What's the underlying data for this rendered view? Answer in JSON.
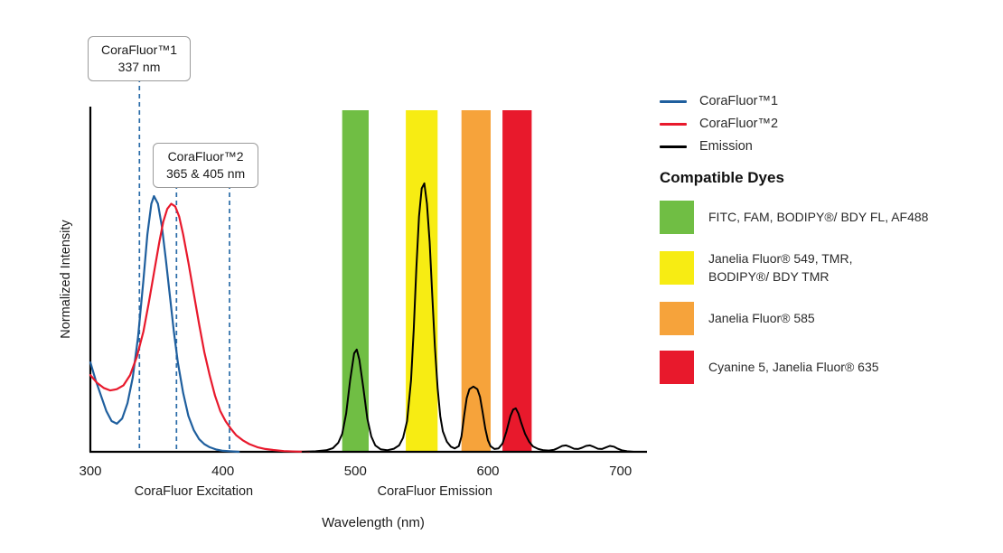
{
  "chart_data": {
    "type": "line",
    "title": "",
    "xlabel": "Wavelength (nm)",
    "ylabel": "Normalized Intensity",
    "xlim": [
      300,
      720
    ],
    "ylim": [
      0,
      1.35
    ],
    "xticks": [
      300,
      400,
      500,
      600,
      700
    ],
    "grid": false,
    "legend_position": "right",
    "marker_color": "#2B6CA8",
    "region_labels": [
      {
        "text": "CoraFluor Excitation",
        "center_nm": 378
      },
      {
        "text": "CoraFluor Emission",
        "center_nm": 560
      }
    ],
    "bands": [
      {
        "name": "filter-band-green",
        "from": 490,
        "to": 510,
        "color": "#70BE44"
      },
      {
        "name": "filter-band-yellow",
        "from": 538,
        "to": 562,
        "color": "#F7EC13"
      },
      {
        "name": "filter-band-orange",
        "from": 580,
        "to": 602,
        "color": "#F6A33B"
      },
      {
        "name": "filter-band-red",
        "from": 611,
        "to": 633,
        "color": "#E8192C"
      }
    ],
    "markers": [
      {
        "nm": 337,
        "from_annotation": 0
      },
      {
        "nm": 365,
        "from_annotation": 1
      },
      {
        "nm": 405,
        "from_annotation": 1
      }
    ],
    "series": [
      {
        "name": "CoraFluor™1",
        "color": "#1F5F9E",
        "width": 2.2,
        "points": [
          [
            300,
            0.35
          ],
          [
            304,
            0.28
          ],
          [
            308,
            0.22
          ],
          [
            312,
            0.16
          ],
          [
            316,
            0.12
          ],
          [
            320,
            0.11
          ],
          [
            324,
            0.13
          ],
          [
            328,
            0.19
          ],
          [
            332,
            0.29
          ],
          [
            336,
            0.45
          ],
          [
            340,
            0.67
          ],
          [
            343,
            0.85
          ],
          [
            346,
            0.97
          ],
          [
            348,
            1.0
          ],
          [
            351,
            0.97
          ],
          [
            354,
            0.88
          ],
          [
            357,
            0.75
          ],
          [
            360,
            0.61
          ],
          [
            363,
            0.47
          ],
          [
            366,
            0.35
          ],
          [
            370,
            0.23
          ],
          [
            374,
            0.14
          ],
          [
            378,
            0.085
          ],
          [
            382,
            0.05
          ],
          [
            386,
            0.03
          ],
          [
            390,
            0.018
          ],
          [
            395,
            0.009
          ],
          [
            400,
            0.004
          ],
          [
            405,
            0.002
          ],
          [
            412,
            0
          ]
        ]
      },
      {
        "name": "CoraFluor™2",
        "color": "#E8192C",
        "width": 2.2,
        "points": [
          [
            300,
            0.3
          ],
          [
            305,
            0.27
          ],
          [
            310,
            0.25
          ],
          [
            315,
            0.24
          ],
          [
            320,
            0.245
          ],
          [
            325,
            0.26
          ],
          [
            330,
            0.3
          ],
          [
            335,
            0.37
          ],
          [
            340,
            0.47
          ],
          [
            344,
            0.58
          ],
          [
            348,
            0.7
          ],
          [
            352,
            0.82
          ],
          [
            355,
            0.9
          ],
          [
            358,
            0.95
          ],
          [
            361,
            0.97
          ],
          [
            364,
            0.96
          ],
          [
            367,
            0.92
          ],
          [
            370,
            0.85
          ],
          [
            374,
            0.74
          ],
          [
            378,
            0.62
          ],
          [
            382,
            0.5
          ],
          [
            386,
            0.39
          ],
          [
            390,
            0.3
          ],
          [
            394,
            0.22
          ],
          [
            398,
            0.16
          ],
          [
            402,
            0.12
          ],
          [
            406,
            0.09
          ],
          [
            410,
            0.065
          ],
          [
            415,
            0.045
          ],
          [
            420,
            0.03
          ],
          [
            426,
            0.018
          ],
          [
            432,
            0.011
          ],
          [
            438,
            0.007
          ],
          [
            446,
            0.003
          ],
          [
            455,
            0.001
          ],
          [
            465,
            0
          ]
        ]
      },
      {
        "name": "Emission",
        "color": "#000000",
        "width": 2,
        "points": [
          [
            460,
            0
          ],
          [
            470,
            0.002
          ],
          [
            478,
            0.006
          ],
          [
            483,
            0.014
          ],
          [
            487,
            0.035
          ],
          [
            490,
            0.07
          ],
          [
            493,
            0.15
          ],
          [
            496,
            0.28
          ],
          [
            499,
            0.385
          ],
          [
            501,
            0.4
          ],
          [
            503,
            0.36
          ],
          [
            506,
            0.25
          ],
          [
            509,
            0.13
          ],
          [
            512,
            0.06
          ],
          [
            515,
            0.025
          ],
          [
            519,
            0.01
          ],
          [
            524,
            0.006
          ],
          [
            529,
            0.012
          ],
          [
            533,
            0.025
          ],
          [
            536,
            0.055
          ],
          [
            539,
            0.12
          ],
          [
            542,
            0.28
          ],
          [
            544,
            0.48
          ],
          [
            546,
            0.72
          ],
          [
            548,
            0.92
          ],
          [
            550,
            1.03
          ],
          [
            552,
            1.05
          ],
          [
            554,
            0.97
          ],
          [
            556,
            0.82
          ],
          [
            558,
            0.61
          ],
          [
            560,
            0.41
          ],
          [
            562,
            0.25
          ],
          [
            564,
            0.14
          ],
          [
            566,
            0.08
          ],
          [
            569,
            0.04
          ],
          [
            572,
            0.02
          ],
          [
            575,
            0.013
          ],
          [
            578,
            0.022
          ],
          [
            580,
            0.06
          ],
          [
            582,
            0.14
          ],
          [
            584,
            0.21
          ],
          [
            586,
            0.245
          ],
          [
            589,
            0.255
          ],
          [
            592,
            0.245
          ],
          [
            594,
            0.215
          ],
          [
            596,
            0.155
          ],
          [
            598,
            0.09
          ],
          [
            600,
            0.045
          ],
          [
            602,
            0.022
          ],
          [
            605,
            0.011
          ],
          [
            608,
            0.013
          ],
          [
            611,
            0.032
          ],
          [
            614,
            0.08
          ],
          [
            617,
            0.14
          ],
          [
            619,
            0.165
          ],
          [
            621,
            0.17
          ],
          [
            623,
            0.15
          ],
          [
            625,
            0.115
          ],
          [
            628,
            0.07
          ],
          [
            631,
            0.04
          ],
          [
            634,
            0.021
          ],
          [
            638,
            0.011
          ],
          [
            642,
            0.006
          ],
          [
            646,
            0.005
          ],
          [
            650,
            0.008
          ],
          [
            653,
            0.015
          ],
          [
            656,
            0.023
          ],
          [
            659,
            0.025
          ],
          [
            662,
            0.019
          ],
          [
            665,
            0.012
          ],
          [
            668,
            0.011
          ],
          [
            671,
            0.016
          ],
          [
            674,
            0.023
          ],
          [
            677,
            0.025
          ],
          [
            680,
            0.019
          ],
          [
            683,
            0.012
          ],
          [
            686,
            0.011
          ],
          [
            689,
            0.017
          ],
          [
            692,
            0.023
          ],
          [
            695,
            0.02
          ],
          [
            698,
            0.012
          ],
          [
            701,
            0.006
          ],
          [
            705,
            0.002
          ],
          [
            710,
            0
          ]
        ]
      }
    ]
  },
  "annotations": [
    {
      "line1": "CoraFluor™1",
      "line2": "337 nm",
      "anchor_nm": 337
    },
    {
      "line1": "CoraFluor™2",
      "line2": "365 & 405 nm",
      "anchor_nm": 387
    }
  ],
  "legend": {
    "items": [
      {
        "label": "CoraFluor™1",
        "color": "#1F5F9E"
      },
      {
        "label": "CoraFluor™2",
        "color": "#E8192C"
      },
      {
        "label": "Emission",
        "color": "#000000"
      }
    ]
  },
  "compatible_dyes": {
    "title": "Compatible Dyes",
    "items": [
      {
        "color": "#70BE44",
        "label": "FITC, FAM, BODIPY®/ BDY FL, AF488"
      },
      {
        "color": "#F7EC13",
        "label": "Janelia Fluor® 549, TMR,\nBODIPY®/ BDY TMR"
      },
      {
        "color": "#F6A33B",
        "label": "Janelia Fluor® 585"
      },
      {
        "color": "#E8192C",
        "label": "Cyanine 5, Janelia Fluor® 635"
      }
    ]
  }
}
